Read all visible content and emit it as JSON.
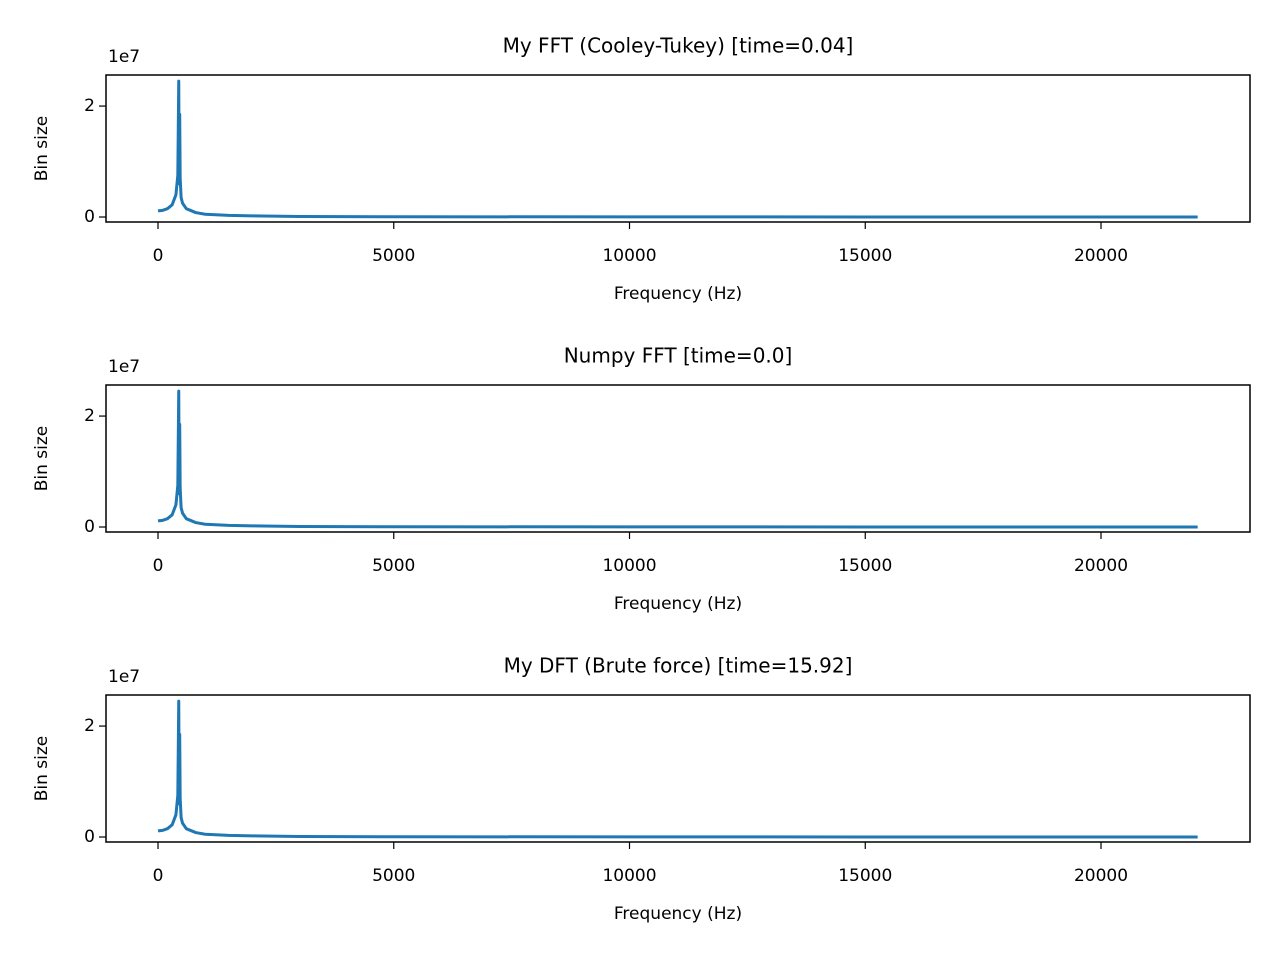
{
  "chart_data": [
    {
      "type": "line",
      "title": "My FFT (Cooley-Tukey) [time=0.04]",
      "xlabel": "Frequency (Hz)",
      "ylabel": "Bin size",
      "y_offset_label": "1e7",
      "color": "#1f77b4",
      "x": [
        0,
        100,
        200,
        300,
        380,
        420,
        440,
        450,
        460,
        470,
        490,
        520,
        600,
        800,
        1000,
        1500,
        2000,
        3000,
        5000,
        10000,
        15000,
        22050
      ],
      "values": [
        0.11,
        0.12,
        0.15,
        0.22,
        0.4,
        0.75,
        2.45,
        0.6,
        1.85,
        0.7,
        0.35,
        0.25,
        0.15,
        0.08,
        0.05,
        0.03,
        0.02,
        0.01,
        0.005,
        0.002,
        0.001,
        0.001
      ],
      "xlim": [
        -1103,
        23160
      ],
      "ylim": [
        -0.09,
        2.56
      ],
      "xticks": [
        0,
        5000,
        10000,
        15000,
        20000
      ],
      "yticks": [
        0,
        2
      ]
    },
    {
      "type": "line",
      "title": "Numpy FFT [time=0.0]",
      "xlabel": "Frequency (Hz)",
      "ylabel": "Bin size",
      "y_offset_label": "1e7",
      "color": "#1f77b4",
      "x": [
        0,
        100,
        200,
        300,
        380,
        420,
        440,
        450,
        460,
        470,
        490,
        520,
        600,
        800,
        1000,
        1500,
        2000,
        3000,
        5000,
        10000,
        15000,
        22050
      ],
      "values": [
        0.11,
        0.12,
        0.15,
        0.22,
        0.4,
        0.75,
        2.45,
        0.6,
        1.85,
        0.7,
        0.35,
        0.25,
        0.15,
        0.08,
        0.05,
        0.03,
        0.02,
        0.01,
        0.005,
        0.002,
        0.001,
        0.001
      ],
      "xlim": [
        -1103,
        23160
      ],
      "ylim": [
        -0.09,
        2.56
      ],
      "xticks": [
        0,
        5000,
        10000,
        15000,
        20000
      ],
      "yticks": [
        0,
        2
      ]
    },
    {
      "type": "line",
      "title": "My DFT (Brute force) [time=15.92]",
      "xlabel": "Frequency (Hz)",
      "ylabel": "Bin size",
      "y_offset_label": "1e7",
      "color": "#1f77b4",
      "x": [
        0,
        100,
        200,
        300,
        380,
        420,
        440,
        450,
        460,
        470,
        490,
        520,
        600,
        800,
        1000,
        1500,
        2000,
        3000,
        5000,
        10000,
        15000,
        22050
      ],
      "values": [
        0.11,
        0.12,
        0.15,
        0.22,
        0.4,
        0.75,
        2.45,
        0.6,
        1.85,
        0.7,
        0.35,
        0.25,
        0.15,
        0.08,
        0.05,
        0.03,
        0.02,
        0.01,
        0.005,
        0.002,
        0.001,
        0.001
      ],
      "xlim": [
        -1103,
        23160
      ],
      "ylim": [
        -0.09,
        2.56
      ],
      "xticks": [
        0,
        5000,
        10000,
        15000,
        20000
      ],
      "yticks": [
        0,
        2
      ]
    }
  ]
}
